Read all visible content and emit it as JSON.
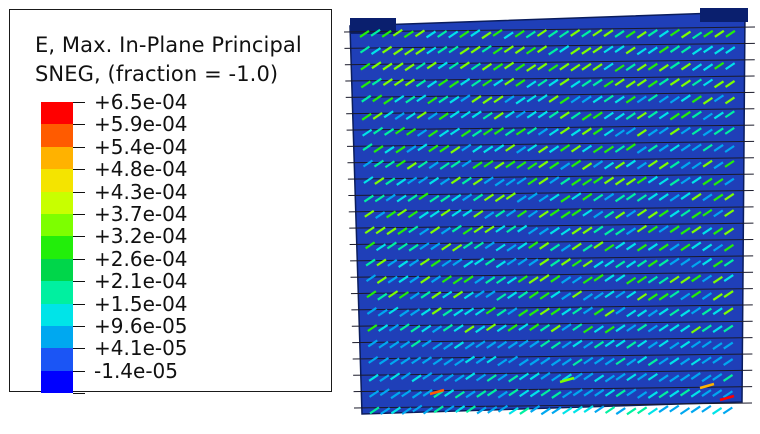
{
  "legend": {
    "title_line1": "E, Max. In-Plane Principal",
    "title_line2": "SNEG, (fraction = -1.0)",
    "levels": [
      {
        "label": "+6.5e-04",
        "color": "#ff0000"
      },
      {
        "label": "+5.9e-04",
        "color": "#ff5b00"
      },
      {
        "label": "+5.4e-04",
        "color": "#ffb200"
      },
      {
        "label": "+4.8e-04",
        "color": "#f4e400"
      },
      {
        "label": "+4.3e-04",
        "color": "#c8ff00"
      },
      {
        "label": "+3.7e-04",
        "color": "#7dff00"
      },
      {
        "label": "+3.2e-04",
        "color": "#22ee0a"
      },
      {
        "label": "+2.6e-04",
        "color": "#00d64a"
      },
      {
        "label": "+2.1e-04",
        "color": "#00f0a0"
      },
      {
        "label": "+1.5e-04",
        "color": "#00e4e8"
      },
      {
        "label": "+9.6e-05",
        "color": "#00a8f0"
      },
      {
        "label": "+4.1e-05",
        "color": "#1b55f5"
      },
      {
        "label": "-1.4e-05",
        "color": "#0000ff"
      }
    ]
  },
  "model": {
    "base_color": "#1f3fb8",
    "dark_color": "#0a1f6e",
    "accent_colors": [
      "#00a8f0",
      "#00e4e8",
      "#00f0a0",
      "#22ee0a",
      "#7dff00"
    ]
  }
}
